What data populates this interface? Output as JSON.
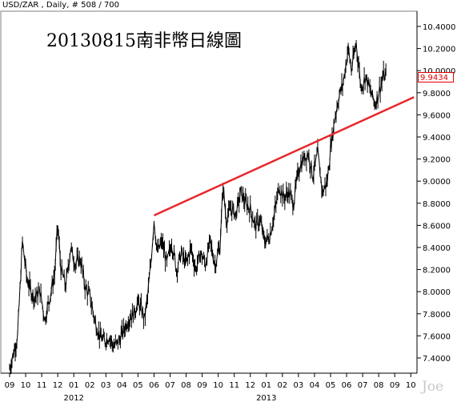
{
  "header": "USD/ZAR , Daily, # 508 / 700",
  "title": "20130815南非幣日線圖",
  "watermark": "Joe",
  "last_price": "9.9434",
  "colors": {
    "trendline": "#e8282c",
    "price": "#000000",
    "last_price": "#e00000"
  },
  "chart_data": {
    "type": "line",
    "instrument": "USD/ZAR",
    "timeframe": "Daily",
    "ylim": [
      7.25,
      10.45
    ],
    "grid": false,
    "y_ticks": [
      7.4,
      7.6,
      7.8,
      8.0,
      8.2,
      8.4,
      8.6,
      8.8,
      9.0,
      9.2,
      9.4,
      9.6,
      9.8,
      10.0,
      10.2,
      10.4
    ],
    "y_tick_labels": [
      "7.4000",
      "7.6000",
      "7.8000",
      "8.0000",
      "8.2000",
      "8.4000",
      "8.6000",
      "8.8000",
      "9.0000",
      "9.2000",
      "9.4000",
      "9.6000",
      "9.8000",
      "10.0000",
      "10.2000",
      "10.4000"
    ],
    "x_tick_labels": [
      "09",
      "10",
      "11",
      "12",
      "01",
      "02",
      "03",
      "04",
      "05",
      "06",
      "07",
      "08",
      "09",
      "10",
      "11",
      "12",
      "01",
      "02",
      "03",
      "04",
      "05",
      "06",
      "07",
      "08",
      "09",
      "10"
    ],
    "year_labels": [
      {
        "label": "2012",
        "month_index": 4
      },
      {
        "label": "2013",
        "month_index": 16
      }
    ],
    "series": [
      {
        "values_by_month": [
          [
            0,
            7.3
          ],
          [
            0.5,
            7.6
          ],
          [
            0.8,
            8.45
          ],
          [
            1.1,
            8.1
          ],
          [
            1.5,
            7.95
          ],
          [
            1.9,
            8.0
          ],
          [
            2.2,
            7.75
          ],
          [
            2.5,
            7.95
          ],
          [
            2.8,
            8.15
          ],
          [
            3.0,
            8.6
          ],
          [
            3.2,
            8.2
          ],
          [
            3.5,
            8.05
          ],
          [
            3.8,
            8.4
          ],
          [
            4.1,
            8.25
          ],
          [
            4.4,
            8.3
          ],
          [
            4.7,
            8.05
          ],
          [
            5.0,
            7.95
          ],
          [
            5.3,
            7.75
          ],
          [
            5.6,
            7.6
          ],
          [
            5.9,
            7.55
          ],
          [
            6.2,
            7.6
          ],
          [
            6.5,
            7.5
          ],
          [
            6.8,
            7.55
          ],
          [
            7.1,
            7.65
          ],
          [
            7.4,
            7.75
          ],
          [
            7.7,
            7.8
          ],
          [
            8.0,
            7.9
          ],
          [
            8.2,
            7.85
          ],
          [
            8.4,
            7.75
          ],
          [
            8.6,
            7.95
          ],
          [
            8.8,
            8.25
          ],
          [
            9.0,
            8.65
          ],
          [
            9.2,
            8.35
          ],
          [
            9.5,
            8.45
          ],
          [
            9.8,
            8.25
          ],
          [
            10.1,
            8.45
          ],
          [
            10.4,
            8.2
          ],
          [
            10.7,
            8.35
          ],
          [
            11.0,
            8.25
          ],
          [
            11.3,
            8.4
          ],
          [
            11.6,
            8.2
          ],
          [
            11.9,
            8.35
          ],
          [
            12.2,
            8.25
          ],
          [
            12.5,
            8.45
          ],
          [
            12.8,
            8.25
          ],
          [
            13.1,
            8.4
          ],
          [
            13.3,
            8.95
          ],
          [
            13.5,
            8.65
          ],
          [
            13.8,
            8.75
          ],
          [
            14.1,
            8.7
          ],
          [
            14.4,
            8.9
          ],
          [
            14.7,
            8.8
          ],
          [
            15.0,
            8.75
          ],
          [
            15.3,
            8.6
          ],
          [
            15.6,
            8.65
          ],
          [
            15.9,
            8.45
          ],
          [
            16.2,
            8.5
          ],
          [
            16.5,
            8.7
          ],
          [
            16.8,
            8.95
          ],
          [
            17.1,
            8.85
          ],
          [
            17.4,
            8.9
          ],
          [
            17.7,
            8.8
          ],
          [
            18.0,
            9.1
          ],
          [
            18.3,
            9.2
          ],
          [
            18.6,
            9.25
          ],
          [
            18.9,
            9.05
          ],
          [
            19.2,
            9.25
          ],
          [
            19.5,
            8.9
          ],
          [
            19.8,
            9.0
          ],
          [
            20.0,
            9.3
          ],
          [
            20.3,
            9.6
          ],
          [
            20.5,
            9.75
          ],
          [
            20.8,
            9.9
          ],
          [
            21.1,
            10.2
          ],
          [
            21.3,
            10.0
          ],
          [
            21.6,
            10.25
          ],
          [
            21.9,
            9.85
          ],
          [
            22.2,
            9.95
          ],
          [
            22.5,
            9.8
          ],
          [
            22.8,
            9.7
          ],
          [
            23.1,
            9.85
          ],
          [
            23.3,
            9.95
          ],
          [
            23.5,
            9.94
          ]
        ]
      }
    ],
    "trendline": {
      "from": [
        9.0,
        8.69
      ],
      "to": [
        25.2,
        9.76
      ]
    }
  }
}
